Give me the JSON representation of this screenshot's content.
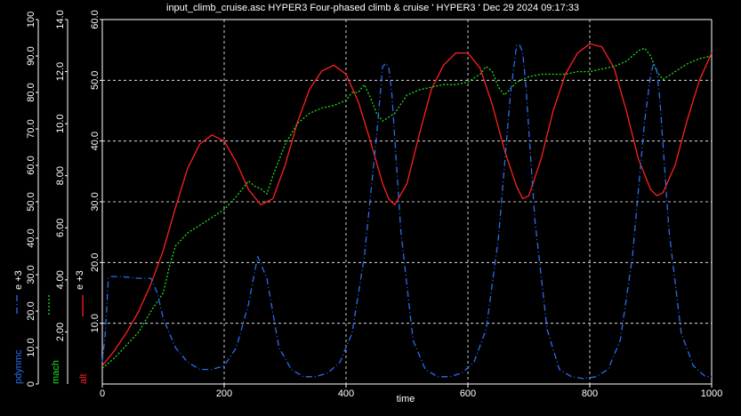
{
  "chart_data": {
    "type": "line",
    "title": "input_climb_cruise.asc HYPER3 Four-phased climb & cruise ' HYPER3 ' Dec 29 2024 09:17:33",
    "xlabel": "time",
    "xlim": [
      0,
      1000
    ],
    "x_ticks": [
      "0",
      "200",
      "400",
      "600",
      "800",
      "1000"
    ],
    "grid": true,
    "background": "#000000",
    "axes": [
      {
        "id": "alt",
        "label": "alt",
        "multiplier": "e +3",
        "color": "#ff2020",
        "line_style": "solid",
        "ylim": [
          0,
          60
        ],
        "ticks": [
          "10.0",
          "20.0",
          "30.0",
          "40.0",
          "50.0",
          "60.0"
        ]
      },
      {
        "id": "mach",
        "label": "mach",
        "color": "#22dd22",
        "line_style": "dotted",
        "ylim": [
          0,
          14
        ],
        "ticks": [
          "2.00",
          "4.00",
          "6.00",
          "8.00",
          "10.0",
          "12.0",
          "14.0"
        ]
      },
      {
        "id": "pdynmc",
        "label": "pdynmc",
        "multiplier": "e +3",
        "color": "#2a6cf0",
        "line_style": "dashdot",
        "ylim": [
          0,
          100
        ],
        "ticks": [
          "0",
          "10.0",
          "20.0",
          "30.0",
          "40.0",
          "50.0",
          "60.0",
          "70.0",
          "80.0",
          "90.0",
          "100"
        ]
      }
    ],
    "series": [
      {
        "name": "alt",
        "axis": "alt",
        "color": "#ff2020",
        "x": [
          0,
          20,
          40,
          60,
          80,
          100,
          120,
          140,
          160,
          180,
          200,
          220,
          240,
          260,
          280,
          300,
          320,
          340,
          360,
          380,
          400,
          420,
          440,
          460,
          470,
          480,
          500,
          520,
          540,
          560,
          580,
          600,
          620,
          640,
          660,
          680,
          690,
          700,
          720,
          740,
          760,
          780,
          800,
          820,
          840,
          860,
          880,
          900,
          910,
          920,
          940,
          960,
          980,
          1000
        ],
        "values": [
          3.0,
          5.5,
          8.5,
          12.0,
          16.5,
          22.0,
          29.0,
          35.5,
          39.5,
          41.0,
          40.0,
          36.5,
          32.0,
          29.5,
          30.5,
          36.0,
          43.0,
          48.5,
          51.5,
          52.5,
          51.0,
          46.5,
          40.0,
          33.0,
          30.5,
          29.5,
          33.0,
          41.0,
          48.5,
          52.5,
          54.5,
          54.5,
          52.0,
          46.0,
          38.5,
          32.5,
          30.5,
          31.0,
          37.0,
          45.0,
          51.0,
          54.5,
          56.0,
          55.5,
          52.0,
          45.0,
          37.0,
          32.0,
          31.0,
          31.5,
          36.0,
          43.5,
          50.0,
          54.5
        ]
      },
      {
        "name": "mach",
        "axis": "mach",
        "color": "#22dd22",
        "x": [
          0,
          20,
          40,
          60,
          80,
          100,
          110,
          120,
          140,
          160,
          180,
          200,
          220,
          240,
          250,
          260,
          270,
          280,
          300,
          320,
          340,
          360,
          380,
          400,
          410,
          420,
          430,
          440,
          450,
          460,
          480,
          500,
          520,
          540,
          560,
          580,
          600,
          620,
          630,
          640,
          650,
          660,
          680,
          700,
          720,
          740,
          760,
          780,
          800,
          820,
          840,
          860,
          880,
          890,
          900,
          910,
          920,
          940,
          960,
          980,
          1000
        ],
        "values": [
          0.6,
          1.0,
          1.5,
          2.0,
          2.8,
          3.5,
          4.5,
          5.3,
          5.8,
          6.1,
          6.4,
          6.7,
          7.2,
          7.8,
          7.6,
          7.5,
          7.3,
          8.0,
          9.2,
          10.0,
          10.4,
          10.6,
          10.7,
          10.9,
          11.2,
          11.2,
          11.5,
          11.0,
          10.4,
          10.1,
          10.4,
          11.1,
          11.3,
          11.4,
          11.5,
          11.5,
          11.6,
          11.9,
          12.2,
          12.0,
          11.4,
          11.1,
          11.6,
          11.8,
          11.9,
          11.9,
          11.9,
          12.0,
          12.0,
          12.1,
          12.2,
          12.4,
          12.8,
          12.9,
          12.6,
          12.0,
          11.7,
          12.0,
          12.3,
          12.5,
          12.6
        ]
      },
      {
        "name": "pdynmc",
        "axis": "pdynmc",
        "color": "#2a6cf0",
        "x": [
          0,
          5,
          10,
          15,
          30,
          60,
          80,
          90,
          100,
          120,
          140,
          160,
          180,
          200,
          220,
          240,
          255,
          270,
          290,
          310,
          330,
          350,
          370,
          390,
          410,
          430,
          450,
          460,
          465,
          470,
          475,
          490,
          510,
          530,
          550,
          570,
          590,
          610,
          630,
          650,
          670,
          680,
          685,
          690,
          695,
          710,
          730,
          750,
          770,
          790,
          810,
          830,
          850,
          870,
          890,
          900,
          905,
          910,
          915,
          930,
          950,
          970,
          990,
          1000
        ],
        "values": [
          6,
          14,
          29,
          29.5,
          29.5,
          29,
          29,
          25,
          18,
          10,
          6,
          4,
          4,
          5,
          10,
          22,
          35,
          29,
          10,
          4,
          2,
          2,
          3,
          6,
          14,
          35,
          68,
          87,
          88,
          87,
          80,
          42,
          12,
          4,
          2,
          2,
          3,
          6,
          15,
          40,
          80,
          93,
          93,
          91,
          82,
          45,
          15,
          4,
          2,
          1.5,
          2,
          4,
          12,
          35,
          72,
          85,
          88,
          86,
          78,
          42,
          14,
          5,
          2,
          2
        ]
      }
    ]
  }
}
